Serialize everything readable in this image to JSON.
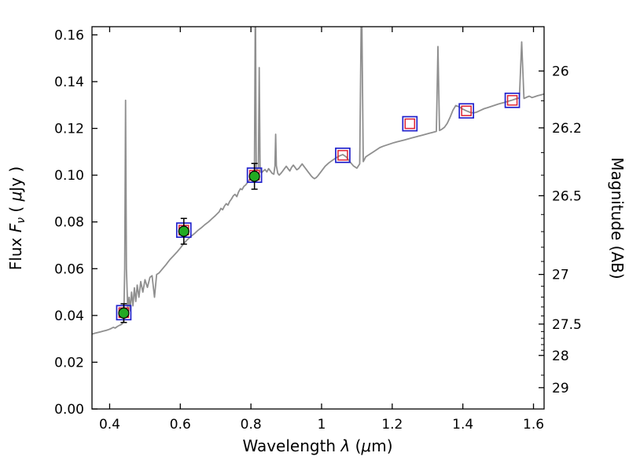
{
  "figure": {
    "background": "#ffffff"
  },
  "chart_data": {
    "type": "line+scatter",
    "title": "",
    "x_axis": {
      "label_parts": {
        "text1": "Wavelength ",
        "lambda": "λ",
        "text2": " (",
        "mu": "μ",
        "text3": "m)"
      },
      "lim": [
        0.35,
        1.63
      ],
      "ticks": {
        "values": [
          0.4,
          0.6,
          0.8,
          1.0,
          1.2,
          1.4,
          1.6
        ],
        "labels": [
          "0.4",
          "0.6",
          "0.8",
          "1",
          "1.2",
          "1.4",
          "1.6"
        ]
      }
    },
    "y_axis_left": {
      "label_parts": {
        "text1": "Flux ",
        "F": "F",
        "nu": "ν",
        "text2": " ( ",
        "mu": "μ",
        "text3": "Jy )"
      },
      "lim": [
        0.0,
        0.1635
      ],
      "ticks": {
        "values": [
          0.0,
          0.02,
          0.04,
          0.06,
          0.08,
          0.1,
          0.12,
          0.14,
          0.16
        ],
        "labels": [
          "0.00",
          "0.02",
          "0.04",
          "0.06",
          "0.08",
          "0.10",
          "0.12",
          "0.14",
          "0.16"
        ]
      }
    },
    "y_axis_right": {
      "label": "Magnitude (AB)",
      "mag_zero_point": 23.9,
      "tick_mags": [
        26,
        26.2,
        26.5,
        27,
        27.5,
        28,
        29
      ],
      "tick_labels": [
        "26",
        "26.2",
        "26.5",
        "27",
        "27.5",
        "28",
        "29"
      ],
      "minor_tick_mags": [
        26.1,
        26.3,
        26.4,
        26.6,
        26.7,
        26.8,
        26.9,
        27.1,
        27.2,
        27.3,
        27.4,
        27.6,
        27.7,
        27.8,
        27.9,
        28.5
      ]
    },
    "spectrum": {
      "name": "model-spectrum",
      "color": "#8f8f8f",
      "x": [
        0.35,
        0.358,
        0.366,
        0.374,
        0.382,
        0.39,
        0.398,
        0.404,
        0.41,
        0.416,
        0.422,
        0.428,
        0.434,
        0.44,
        0.4425,
        0.445,
        0.4475,
        0.451,
        0.455,
        0.458,
        0.462,
        0.466,
        0.47,
        0.474,
        0.478,
        0.483,
        0.488,
        0.494,
        0.5,
        0.507,
        0.514,
        0.52,
        0.527,
        0.533,
        0.54,
        0.55,
        0.56,
        0.57,
        0.58,
        0.59,
        0.6,
        0.61,
        0.62,
        0.63,
        0.64,
        0.65,
        0.66,
        0.67,
        0.68,
        0.69,
        0.7,
        0.71,
        0.715,
        0.72,
        0.725,
        0.73,
        0.735,
        0.74,
        0.745,
        0.75,
        0.755,
        0.76,
        0.765,
        0.77,
        0.775,
        0.78,
        0.785,
        0.79,
        0.795,
        0.8,
        0.805,
        0.81,
        0.8125,
        0.815,
        0.818,
        0.821,
        0.8235,
        0.826,
        0.83,
        0.835,
        0.84,
        0.845,
        0.85,
        0.855,
        0.86,
        0.865,
        0.868,
        0.87,
        0.872,
        0.876,
        0.88,
        0.885,
        0.89,
        0.895,
        0.9,
        0.905,
        0.91,
        0.915,
        0.92,
        0.925,
        0.93,
        0.935,
        0.94,
        0.945,
        0.95,
        0.955,
        0.96,
        0.965,
        0.97,
        0.975,
        0.98,
        0.985,
        0.99,
        0.995,
        1.0,
        1.01,
        1.02,
        1.03,
        1.04,
        1.05,
        1.06,
        1.07,
        1.08,
        1.09,
        1.1,
        1.108,
        1.113,
        1.118,
        1.125,
        1.135,
        1.145,
        1.155,
        1.165,
        1.175,
        1.185,
        1.195,
        1.205,
        1.215,
        1.225,
        1.235,
        1.245,
        1.255,
        1.265,
        1.275,
        1.285,
        1.295,
        1.305,
        1.315,
        1.325,
        1.3295,
        1.334,
        1.34,
        1.348,
        1.356,
        1.364,
        1.372,
        1.38,
        1.39,
        1.4,
        1.41,
        1.42,
        1.43,
        1.44,
        1.45,
        1.46,
        1.47,
        1.48,
        1.49,
        1.5,
        1.51,
        1.52,
        1.53,
        1.54,
        1.55,
        1.56,
        1.5665,
        1.573,
        1.58,
        1.588,
        1.596,
        1.604,
        1.612,
        1.62,
        1.63
      ],
      "y": [
        0.032,
        0.0324,
        0.0327,
        0.033,
        0.0333,
        0.0336,
        0.034,
        0.0344,
        0.0349,
        0.0346,
        0.0353,
        0.0358,
        0.0362,
        0.0374,
        0.06,
        0.132,
        0.06,
        0.0432,
        0.0478,
        0.042,
        0.05,
        0.0441,
        0.0518,
        0.046,
        0.053,
        0.0478,
        0.0545,
        0.05,
        0.0553,
        0.052,
        0.0563,
        0.057,
        0.0478,
        0.0575,
        0.0582,
        0.06,
        0.0618,
        0.0638,
        0.0654,
        0.067,
        0.0688,
        0.0708,
        0.0724,
        0.0738,
        0.075,
        0.0764,
        0.0776,
        0.0789,
        0.08,
        0.0814,
        0.0828,
        0.0843,
        0.0858,
        0.0852,
        0.0868,
        0.0878,
        0.0872,
        0.0888,
        0.0898,
        0.0912,
        0.0918,
        0.0908,
        0.0928,
        0.0942,
        0.0938,
        0.0952,
        0.0958,
        0.0968,
        0.0978,
        0.0988,
        0.0998,
        0.1008,
        0.18,
        0.1015,
        0.1022,
        0.103,
        0.146,
        0.1018,
        0.101,
        0.1018,
        0.1024,
        0.1014,
        0.1028,
        0.1018,
        0.1008,
        0.1004,
        0.104,
        0.1175,
        0.104,
        0.1008,
        0.1,
        0.1008,
        0.1018,
        0.1028,
        0.1038,
        0.1028,
        0.1018,
        0.1033,
        0.1043,
        0.1033,
        0.1023,
        0.1028,
        0.1038,
        0.1048,
        0.1038,
        0.1028,
        0.1018,
        0.1008,
        0.0998,
        0.099,
        0.0985,
        0.099,
        0.0998,
        0.1008,
        0.1018,
        0.1038,
        0.1052,
        0.1063,
        0.1073,
        0.1082,
        0.1088,
        0.1078,
        0.1058,
        0.104,
        0.103,
        0.1048,
        0.18,
        0.1058,
        0.1078,
        0.1088,
        0.1098,
        0.1108,
        0.1118,
        0.1124,
        0.1129,
        0.1134,
        0.1139,
        0.1143,
        0.1147,
        0.1151,
        0.1155,
        0.1159,
        0.1163,
        0.1167,
        0.1171,
        0.1175,
        0.1179,
        0.1183,
        0.1187,
        0.155,
        0.1191,
        0.1196,
        0.1205,
        0.1222,
        0.1248,
        0.1278,
        0.1298,
        0.1292,
        0.1282,
        0.1275,
        0.1269,
        0.1266,
        0.127,
        0.1277,
        0.1284,
        0.1289,
        0.1294,
        0.1299,
        0.1304,
        0.1308,
        0.1312,
        0.1317,
        0.1321,
        0.1326,
        0.133,
        0.157,
        0.1328,
        0.1333,
        0.1338,
        0.1332,
        0.1336,
        0.134,
        0.1343,
        0.1347
      ]
    },
    "observed_photometry": {
      "name": "observed-photometry",
      "color": "#22aa22",
      "points": [
        {
          "x": 0.44,
          "y": 0.041,
          "yerr": 0.004
        },
        {
          "x": 0.61,
          "y": 0.076,
          "yerr": 0.0055
        },
        {
          "x": 0.81,
          "y": 0.0995,
          "yerr": 0.0055
        }
      ]
    },
    "model_photometry": {
      "name": "model-photometry",
      "outer_color": "#2222cc",
      "inner_color": "#dd2233",
      "points": [
        {
          "x": 0.44,
          "y": 0.0412
        },
        {
          "x": 0.61,
          "y": 0.0765
        },
        {
          "x": 0.81,
          "y": 0.1
        },
        {
          "x": 1.06,
          "y": 0.1085
        },
        {
          "x": 1.25,
          "y": 0.122
        },
        {
          "x": 1.41,
          "y": 0.1275
        },
        {
          "x": 1.54,
          "y": 0.132
        }
      ]
    }
  }
}
